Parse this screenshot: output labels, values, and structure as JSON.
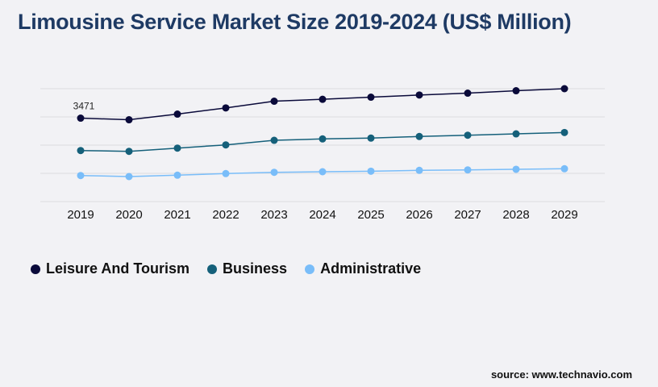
{
  "title": "Limousine Service Market Size 2019-2024 (US$ Million)",
  "source": "source: www.technavio.com",
  "chart_data": {
    "type": "line",
    "title": "Limousine Service Market Size 2019-2024 (US$ Million)",
    "x": [
      "2019",
      "2020",
      "2021",
      "2022",
      "2023",
      "2024",
      "2025",
      "2026",
      "2027",
      "2028",
      "2029"
    ],
    "ylim": [
      0,
      4696
    ],
    "grid": true,
    "legend": "bottom-left",
    "annotations": [
      {
        "series": "Leisure And Tourism",
        "x": "2019",
        "text": "3471"
      }
    ],
    "series": [
      {
        "name": "Leisure And Tourism",
        "color": "#0a0a3a",
        "values": [
          3471,
          3404,
          3639,
          3897,
          4175,
          4255,
          4343,
          4433,
          4510,
          4611,
          4696
        ]
      },
      {
        "name": "Business",
        "color": "#15607a",
        "values": [
          2123,
          2090,
          2224,
          2358,
          2549,
          2606,
          2640,
          2707,
          2760,
          2817,
          2874
        ]
      },
      {
        "name": "Administrative",
        "color": "#79bdf9",
        "values": [
          1083,
          1040,
          1097,
          1164,
          1218,
          1241,
          1264,
          1298,
          1318,
          1342,
          1365
        ]
      }
    ]
  }
}
